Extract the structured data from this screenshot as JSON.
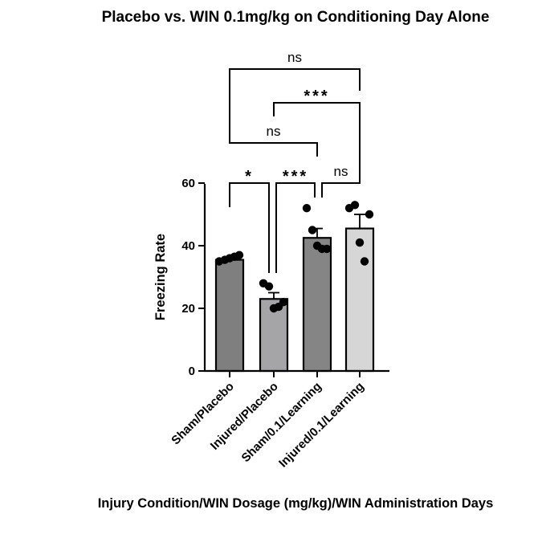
{
  "chart_data": {
    "type": "bar",
    "title": "Placebo vs. WIN 0.1mg/kg on Conditioning Day Alone",
    "xlabel": "Injury Condition/WIN Dosage (mg/kg)/WIN Administration Days",
    "ylabel": "Freezing Rate",
    "ylim": [
      0,
      60
    ],
    "yticks": [
      "0",
      "20",
      "40",
      "60"
    ],
    "grid": false,
    "categories": [
      "Sham/Placebo",
      "Injured/Placebo",
      "Sham/0.1/Learning",
      "Injured/0.1/Learning"
    ],
    "values": [
      35.5,
      23,
      42.5,
      45.5
    ],
    "errors": [
      1,
      2,
      3,
      4.5
    ],
    "bar_colors": [
      "#7f7f7f",
      "#a5a5a8",
      "#858585",
      "#d6d6d6"
    ],
    "points": [
      [
        35,
        35.5,
        36,
        36.5,
        37
      ],
      [
        28,
        27,
        20,
        20.5,
        22
      ],
      [
        52,
        45,
        40,
        39,
        39
      ],
      [
        52,
        53,
        41,
        35,
        50
      ]
    ],
    "comparisons": [
      {
        "from": 0,
        "to": 1,
        "label": "*"
      },
      {
        "from": 1,
        "to": 2,
        "label": "***"
      },
      {
        "from": 2,
        "to": 3,
        "label": "ns"
      },
      {
        "from": 0,
        "to": 2,
        "label": "ns"
      },
      {
        "from": 1,
        "to": 3,
        "label": "***"
      },
      {
        "from": 0,
        "to": 3,
        "label": "ns"
      }
    ]
  }
}
